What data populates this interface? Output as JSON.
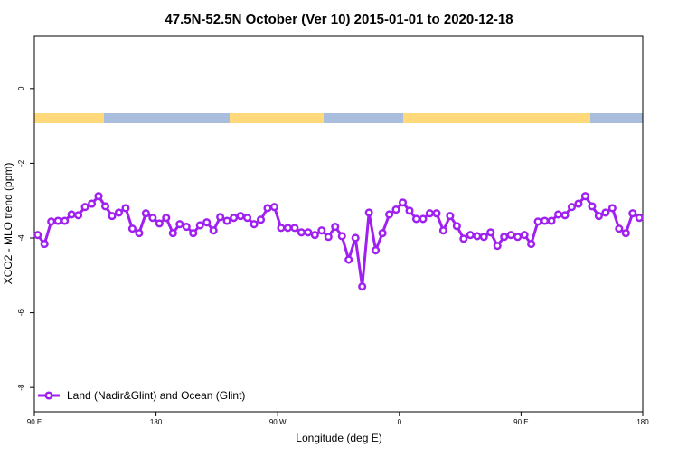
{
  "chart_data": {
    "type": "line",
    "title": "47.5N-52.5N October (Ver 10)   2015-01-01 to 2020-12-18",
    "xlabel": "Longitude (deg E)",
    "ylabel": "XCO2 - MLO trend (ppm)",
    "x": [
      92.5,
      97.5,
      102.5,
      107.5,
      112.5,
      117.5,
      122.5,
      127.5,
      132.5,
      137.5,
      142.5,
      147.5,
      152.5,
      157.5,
      162.5,
      167.5,
      172.5,
      177.5,
      182.5,
      187.5,
      192.5,
      197.5,
      202.5,
      207.5,
      212.5,
      217.5,
      222.5,
      227.5,
      232.5,
      237.5,
      242.5,
      247.5,
      252.5,
      257.5,
      262.5,
      267.5,
      272.5,
      277.5,
      282.5,
      287.5,
      292.5,
      297.5,
      302.5,
      307.5,
      312.5,
      317.5,
      322.5,
      327.5,
      332.5,
      337.5,
      342.5,
      347.5,
      352.5,
      357.5,
      362.5,
      367.5,
      372.5,
      377.5,
      382.5,
      387.5,
      392.5,
      397.5,
      402.5,
      407.5,
      412.5,
      417.5,
      422.5,
      427.5,
      432.5,
      437.5,
      442.5,
      447.5,
      452.5,
      457.5,
      462.5,
      467.5,
      472.5,
      477.5,
      482.5,
      487.5,
      492.5,
      497.5,
      502.5,
      507.5,
      512.5,
      517.5,
      522.5,
      527.5,
      532.5,
      537.5
    ],
    "series": [
      {
        "name": "Land (Nadir&Glint) and Ocean (Glint)",
        "color": "#a020f0",
        "values": [
          -3.92,
          -4.16,
          -3.56,
          -3.54,
          -3.54,
          -3.37,
          -3.39,
          -3.17,
          -3.08,
          -2.88,
          -3.15,
          -3.41,
          -3.32,
          -3.2,
          -3.75,
          -3.87,
          -3.34,
          -3.46,
          -3.61,
          -3.46,
          -3.87,
          -3.63,
          -3.7,
          -3.87,
          -3.66,
          -3.58,
          -3.8,
          -3.44,
          -3.54,
          -3.46,
          -3.41,
          -3.46,
          -3.63,
          -3.51,
          -3.2,
          -3.17,
          -3.73,
          -3.73,
          -3.73,
          -3.85,
          -3.85,
          -3.92,
          -3.8,
          -3.97,
          -3.7,
          -3.95,
          -4.58,
          -4.0,
          -5.3,
          -3.32,
          -4.33,
          -3.87,
          -3.37,
          -3.24,
          -3.05,
          -3.27,
          -3.49,
          -3.49,
          -3.34,
          -3.34,
          -3.8,
          -3.41,
          -3.68,
          -4.02,
          -3.92,
          -3.95,
          -3.97,
          -3.85,
          -4.21,
          -3.97,
          -3.92,
          -3.97,
          -3.92,
          -4.16,
          -3.56,
          -3.54,
          -3.54,
          -3.37,
          -3.39,
          -3.17,
          -3.08,
          -2.88,
          -3.15,
          -3.41,
          -3.32,
          -3.2,
          -3.75,
          -3.87,
          -3.34,
          -3.46
        ]
      }
    ],
    "xlim": [
      90,
      540
    ],
    "xticks": [
      {
        "value": 90,
        "label": "90 E"
      },
      180,
      {
        "value": 270,
        "label": "90 W"
      },
      {
        "value": 360,
        "label": "0"
      },
      {
        "value": 450,
        "label": "90 E"
      },
      180
    ],
    "ylim": [
      -8.65,
      1.4
    ],
    "yticks": [
      0,
      -2,
      -4,
      -6,
      -8
    ],
    "legend": "bottom-left"
  }
}
